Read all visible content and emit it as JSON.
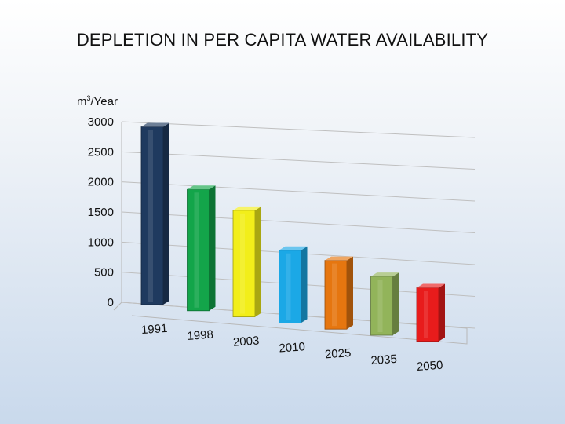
{
  "title": "DEPLETION IN PER CAPITA  WATER AVAILABILITY",
  "unit_label": {
    "base": "m",
    "sup": "3",
    "rest": "/Year"
  },
  "chart_data": {
    "type": "bar",
    "title": "DEPLETION IN PER CAPITA  WATER AVAILABILITY",
    "ylabel": "m3/Year",
    "xlabel": "",
    "categories": [
      "1991",
      "1998",
      "2003",
      "2010",
      "2025",
      "2035",
      "2050"
    ],
    "values": [
      2980,
      2020,
      1760,
      1180,
      1100,
      920,
      820
    ],
    "ylim": [
      0,
      3000
    ],
    "yticks": [
      "0",
      "500",
      "1000",
      "1500",
      "2000",
      "2500",
      "3000"
    ],
    "grid": true,
    "bar_colors": [
      "#1f3a5f",
      "#13a54a",
      "#f2ee1a",
      "#1ba8e6",
      "#e6760f",
      "#92b45a",
      "#e81c1c"
    ]
  }
}
